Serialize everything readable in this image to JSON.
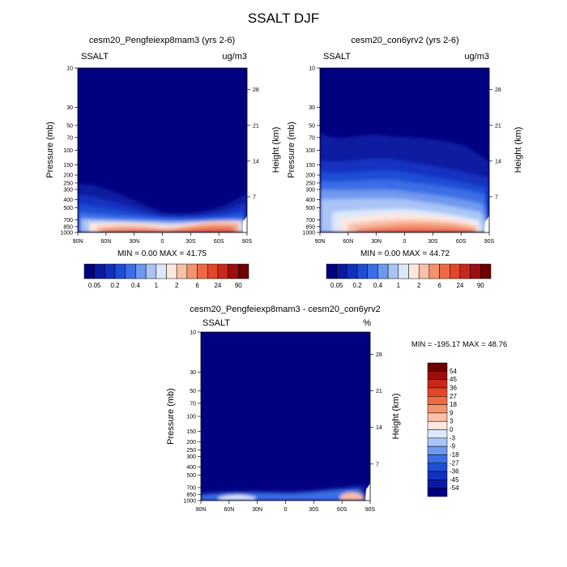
{
  "page_title": "SSALT DJF",
  "colors": {
    "plot_bg": "#00008B",
    "seq_scale": [
      "#000080",
      "#0a1aa0",
      "#1230c0",
      "#1e4ed6",
      "#3a6ee6",
      "#6f98ef",
      "#a9c4f5",
      "#dde8fb",
      "#fde7df",
      "#f9c0a8",
      "#f4936f",
      "#ee6a44",
      "#e2472a",
      "#c8281b",
      "#9e0d0d",
      "#6e0000"
    ],
    "diff_scale": [
      "#6e0000",
      "#9e0d0d",
      "#c8281b",
      "#e2472a",
      "#ee6a44",
      "#f4936f",
      "#f9c0a8",
      "#fde7df",
      "#dde8fb",
      "#a9c4f5",
      "#6f98ef",
      "#3a6ee6",
      "#1e4ed6",
      "#1230c0",
      "#0a1aa0",
      "#000080"
    ]
  },
  "chart_data": [
    {
      "type": "heatmap",
      "title": "cesm20_Pengfeiexp8mam3 (yrs 2-6)",
      "left_string": "SSALT",
      "units": "ug/m3",
      "xlabel": "",
      "ylabel": "Pressure (mb)",
      "ylabel_right": "Height (km)",
      "x_ticks": [
        "90N",
        "60N",
        "30N",
        "0",
        "30S",
        "60S",
        "90S"
      ],
      "y_ticks": [
        "10",
        "30",
        "50",
        "70",
        "100",
        "150",
        "200",
        "250",
        "300",
        "400",
        "500",
        "700",
        "850",
        "1000"
      ],
      "y_ticks_right": [
        "28",
        "21",
        "14",
        "7"
      ],
      "stats": "MIN =   0.00  MAX =  41.75",
      "colorbar_labels": [
        "0.05",
        "0.2",
        "0.4",
        "1",
        "2",
        "6",
        "24",
        "90"
      ],
      "min": 0.0,
      "max": 41.75
    },
    {
      "type": "heatmap",
      "title": "cesm20_con6yrv2 (yrs 2-6)",
      "left_string": "SSALT",
      "units": "ug/m3",
      "xlabel": "",
      "ylabel": "Pressure (mb)",
      "ylabel_right": "Height (km)",
      "x_ticks": [
        "90N",
        "60N",
        "30N",
        "0",
        "30S",
        "60S",
        "90S"
      ],
      "y_ticks": [
        "10",
        "30",
        "50",
        "70",
        "100",
        "150",
        "200",
        "250",
        "300",
        "400",
        "500",
        "700",
        "850",
        "1000"
      ],
      "y_ticks_right": [
        "28",
        "21",
        "14",
        "7"
      ],
      "stats": "MIN =   0.00  MAX =  44.72",
      "colorbar_labels": [
        "0.05",
        "0.2",
        "0.4",
        "1",
        "2",
        "6",
        "24",
        "90"
      ],
      "min": 0.0,
      "max": 44.72
    },
    {
      "type": "heatmap",
      "title": "cesm20_Pengfeiexp8mam3 - cesm20_con6yrv2",
      "left_string": "SSALT",
      "units": "%",
      "xlabel": "",
      "ylabel": "Pressure (mb)",
      "ylabel_right": "Height (km)",
      "x_ticks": [
        "90N",
        "60N",
        "30N",
        "0",
        "30S",
        "60S",
        "90S"
      ],
      "y_ticks": [
        "10",
        "30",
        "50",
        "70",
        "100",
        "150",
        "200",
        "250",
        "300",
        "400",
        "500",
        "700",
        "850",
        "1000"
      ],
      "y_ticks_right": [
        "28",
        "21",
        "14",
        "7"
      ],
      "stats": "MIN = -195.17  MAX =  48.76",
      "colorbar_labels": [
        "54",
        "45",
        "36",
        "27",
        "18",
        "9",
        "3",
        "0",
        "-3",
        "-9",
        "-18",
        "-27",
        "-36",
        "-45",
        "-54"
      ],
      "min": -195.17,
      "max": 48.76
    }
  ]
}
